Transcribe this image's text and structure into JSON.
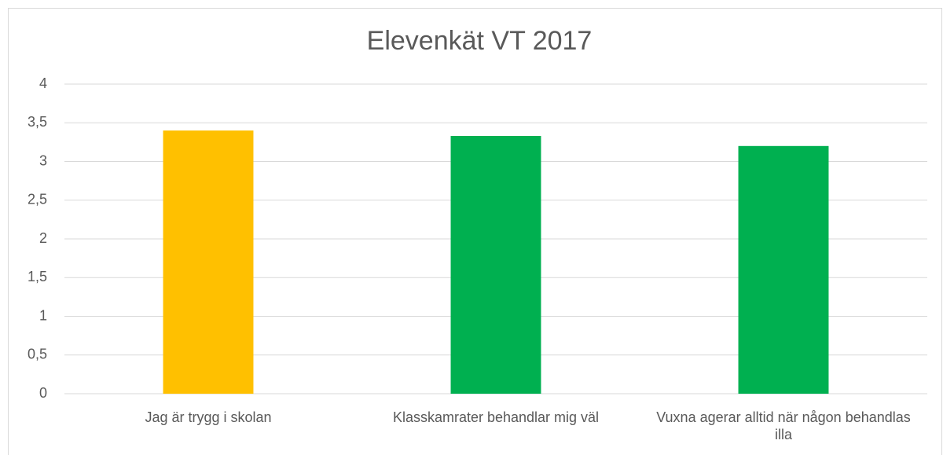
{
  "chart_data": {
    "type": "bar",
    "title": "Elevenkät VT 2017",
    "categories": [
      "Jag är trygg i skolan",
      "Klasskamrater behandlar mig väl",
      "Vuxna agerar alltid när någon behandlas illa"
    ],
    "values": [
      3.4,
      3.33,
      3.2
    ],
    "colors": [
      "#ffc000",
      "#00b050",
      "#00b050"
    ],
    "ylim": [
      0,
      4
    ],
    "yticks": [
      0,
      {
        "value": 0.5,
        "label": "0,5"
      },
      1,
      {
        "value": 1.5,
        "label": "1,5"
      },
      2,
      {
        "value": 2.5,
        "label": "2,5"
      },
      3,
      {
        "value": 3.5,
        "label": "3,5"
      },
      4
    ],
    "grid": true
  }
}
